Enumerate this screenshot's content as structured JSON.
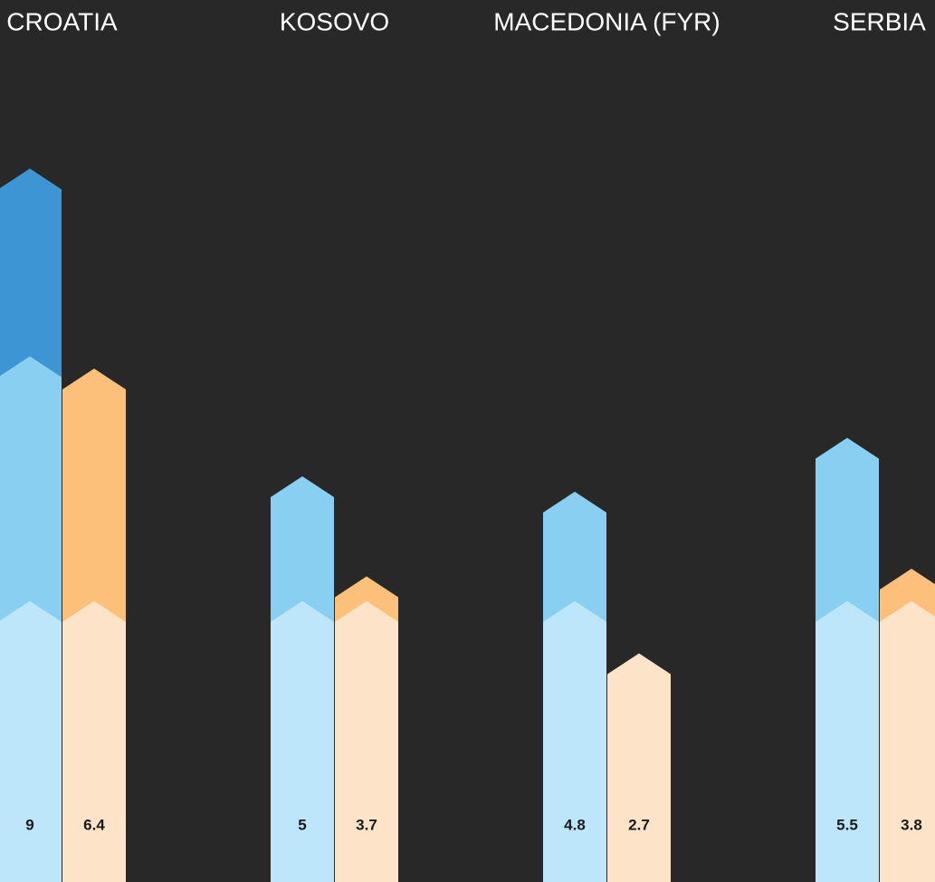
{
  "chart_data": {
    "type": "arrow-bar",
    "categories": [
      "CROATIA",
      "KOSOVO",
      "MACEDONIA (FYR)",
      "SERBIA"
    ],
    "series": [
      {
        "colors": [
          "#bee6fb",
          "#88cff2",
          "#3d95d3"
        ],
        "values": [
          9,
          5,
          4.8,
          5.5
        ]
      },
      {
        "colors": [
          "#fde3c7",
          "#fcc07b",
          "#f59a3c"
        ],
        "values": [
          6.4,
          3.7,
          2.7,
          3.8
        ]
      }
    ],
    "bands": [
      3.38,
      6.56
    ],
    "ylim": [
      0,
      11.46
    ]
  }
}
